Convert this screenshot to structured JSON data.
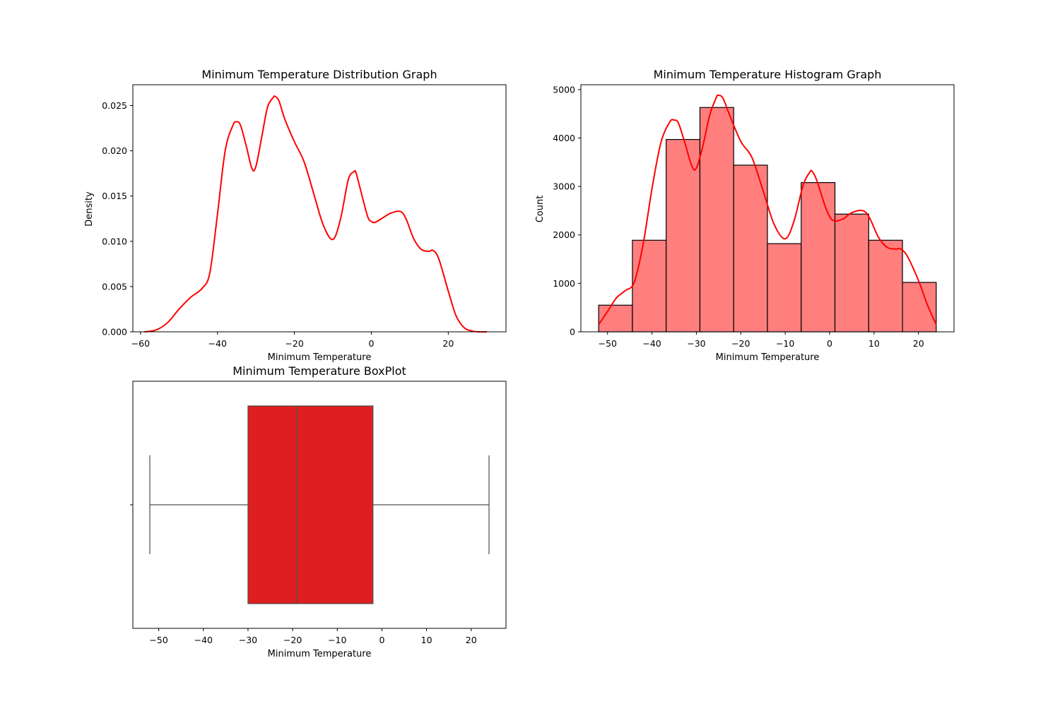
{
  "colors": {
    "line": "#ff0000",
    "hist_fill": "#ff7f7f",
    "hist_edge": "#000000",
    "box_fill": "#df1f1f",
    "box_edge": "#4d4d4d"
  },
  "chart_data": [
    {
      "type": "line",
      "title": "Minimum Temperature Distribution Graph",
      "xlabel": "Minimum Temperature",
      "ylabel": "Density",
      "xlim": [
        -62,
        35
      ],
      "ylim": [
        0,
        0.0273
      ],
      "xticks": [
        -60,
        -40,
        -20,
        0,
        20
      ],
      "yticks": [
        0.0,
        0.005,
        0.01,
        0.015,
        0.02,
        0.025
      ],
      "ytick_labels": [
        "0.000",
        "0.005",
        "0.010",
        "0.015",
        "0.020",
        "0.025"
      ],
      "series": [
        {
          "x": [
            -59,
            -56,
            -53,
            -50,
            -47,
            -44,
            -42,
            -40,
            -38,
            -36,
            -35,
            -34,
            -32.5,
            -31,
            -30,
            -28.5,
            -27,
            -25.5,
            -25,
            -24,
            -22.5,
            -20,
            -17.5,
            -15,
            -12.5,
            -10,
            -8,
            -6,
            -4.5,
            -4,
            -3,
            -1,
            0,
            1,
            3,
            5,
            7.5,
            9,
            11,
            13,
            15,
            16,
            17.5,
            20,
            22,
            24,
            26,
            28,
            30
          ],
          "y": [
            0.0,
            0.0002,
            0.001,
            0.0025,
            0.0038,
            0.0048,
            0.0065,
            0.013,
            0.02,
            0.0228,
            0.0232,
            0.0228,
            0.0205,
            0.018,
            0.0183,
            0.0215,
            0.0248,
            0.0259,
            0.026,
            0.0255,
            0.0235,
            0.021,
            0.0188,
            0.0153,
            0.0118,
            0.0102,
            0.0125,
            0.0168,
            0.0177,
            0.0176,
            0.016,
            0.0128,
            0.0122,
            0.0121,
            0.0126,
            0.0131,
            0.0133,
            0.0125,
            0.0103,
            0.0091,
            0.0089,
            0.009,
            0.0081,
            0.0045,
            0.0018,
            0.0005,
            0.0001,
            0.0,
            0.0
          ]
        }
      ]
    },
    {
      "type": "bar",
      "title": "Minimum Temperature Histogram Graph",
      "xlabel": "Minimum Temperature",
      "ylabel": "Count",
      "xlim": [
        -56,
        28
      ],
      "ylim": [
        0,
        5100
      ],
      "xticks": [
        -50,
        -40,
        -30,
        -20,
        -10,
        0,
        10,
        20
      ],
      "yticks": [
        0,
        1000,
        2000,
        3000,
        4000,
        5000
      ],
      "bin_edges": [
        -52,
        -44.4,
        -36.8,
        -29.2,
        -21.6,
        -14.0,
        -6.4,
        1.2,
        8.8,
        16.4,
        24
      ],
      "values": [
        550,
        1890,
        3970,
        4630,
        3440,
        1820,
        3080,
        2430,
        1890,
        1020
      ],
      "kde": {
        "x": [
          -52,
          -50,
          -48,
          -46,
          -44,
          -42,
          -40,
          -38,
          -36,
          -35,
          -34,
          -32.5,
          -31,
          -30,
          -28.5,
          -27,
          -25.5,
          -25,
          -24,
          -22.5,
          -20,
          -17.5,
          -15,
          -12.5,
          -10,
          -8,
          -6,
          -4.5,
          -4,
          -3,
          -1,
          0,
          1,
          3,
          5,
          7.5,
          9,
          11,
          13,
          15,
          16,
          17.5,
          20,
          22,
          24
        ],
        "y": [
          150,
          420,
          700,
          850,
          1020,
          1800,
          2950,
          3900,
          4330,
          4370,
          4300,
          3870,
          3420,
          3380,
          3850,
          4470,
          4840,
          4880,
          4820,
          4470,
          3930,
          3600,
          2920,
          2220,
          1920,
          2290,
          3020,
          3290,
          3320,
          3150,
          2590,
          2380,
          2290,
          2330,
          2460,
          2500,
          2350,
          1950,
          1740,
          1710,
          1710,
          1560,
          1060,
          560,
          150
        ]
      }
    },
    {
      "type": "box",
      "title": "Minimum Temperature BoxPlot",
      "xlabel": "Minimum Temperature",
      "xlim": [
        -55.8,
        27.8
      ],
      "xticks": [
        -50,
        -40,
        -30,
        -20,
        -10,
        0,
        10,
        20
      ],
      "whisker_low": -52,
      "q1": -30,
      "median": -19,
      "q3": -2,
      "whisker_high": 24
    }
  ]
}
